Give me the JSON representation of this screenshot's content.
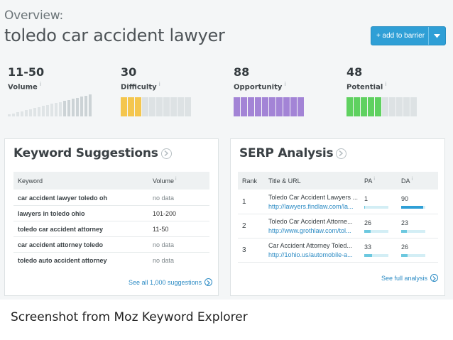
{
  "header": {
    "overview_label": "Overview:",
    "keyword": "toledo car accident lawyer",
    "add_button_label": "+ add to barrier"
  },
  "metrics": [
    {
      "value": "11-50",
      "label": "Volume",
      "info_icon": "info-icon",
      "color": "#dde2e4",
      "filled": 0
    },
    {
      "value": "30",
      "label": "Difficulty",
      "info_icon": "info-icon",
      "color": "#f4c64e",
      "filled": 3
    },
    {
      "value": "88",
      "label": "Opportunity",
      "info_icon": "info-icon",
      "color": "#a384d6",
      "filled": 10
    },
    {
      "value": "48",
      "label": "Potential",
      "info_icon": "info-icon",
      "color": "#5fd160",
      "filled": 5
    }
  ],
  "keyword_suggestions": {
    "title": "Keyword Suggestions",
    "columns": [
      "Keyword",
      "Volume"
    ],
    "rows": [
      {
        "keyword": "car accident lawyer toledo oh",
        "volume": "no data"
      },
      {
        "keyword": "lawyers in toledo ohio",
        "volume": "101-200"
      },
      {
        "keyword": "toledo car accident attorney",
        "volume": "11-50"
      },
      {
        "keyword": "car accident attorney toledo",
        "volume": "no data"
      },
      {
        "keyword": "toledo auto accident attorney",
        "volume": "no data"
      }
    ],
    "see_all_label": "See all 1,000 suggestions"
  },
  "serp_analysis": {
    "title": "SERP Analysis",
    "columns": [
      "Rank",
      "Title & URL",
      "PA",
      "DA"
    ],
    "rows": [
      {
        "rank": "1",
        "title": "Toledo Car Accident Lawyers ...",
        "url": "http://lawyers.findlaw.com/la...",
        "pa": "1",
        "da": "90",
        "pa_fraction": 0.01,
        "da_fraction": 0.9
      },
      {
        "rank": "2",
        "title": "Toledo Car Accident Attorne...",
        "url": "http://www.grothlaw.com/tol...",
        "pa": "26",
        "da": "23",
        "pa_fraction": 0.26,
        "da_fraction": 0.23
      },
      {
        "rank": "3",
        "title": "Car Accident Attorney Toled...",
        "url": "http://1ohio.us/automobile-a...",
        "pa": "33",
        "da": "26",
        "pa_fraction": 0.33,
        "da_fraction": 0.26
      }
    ],
    "see_full_label": "See full analysis"
  },
  "caption": "Screenshot from Moz Keyword Explorer",
  "colors": {
    "accent": "#2f9fd6",
    "link": "#2c8bc4",
    "empty_bar": "#dde2e4"
  }
}
